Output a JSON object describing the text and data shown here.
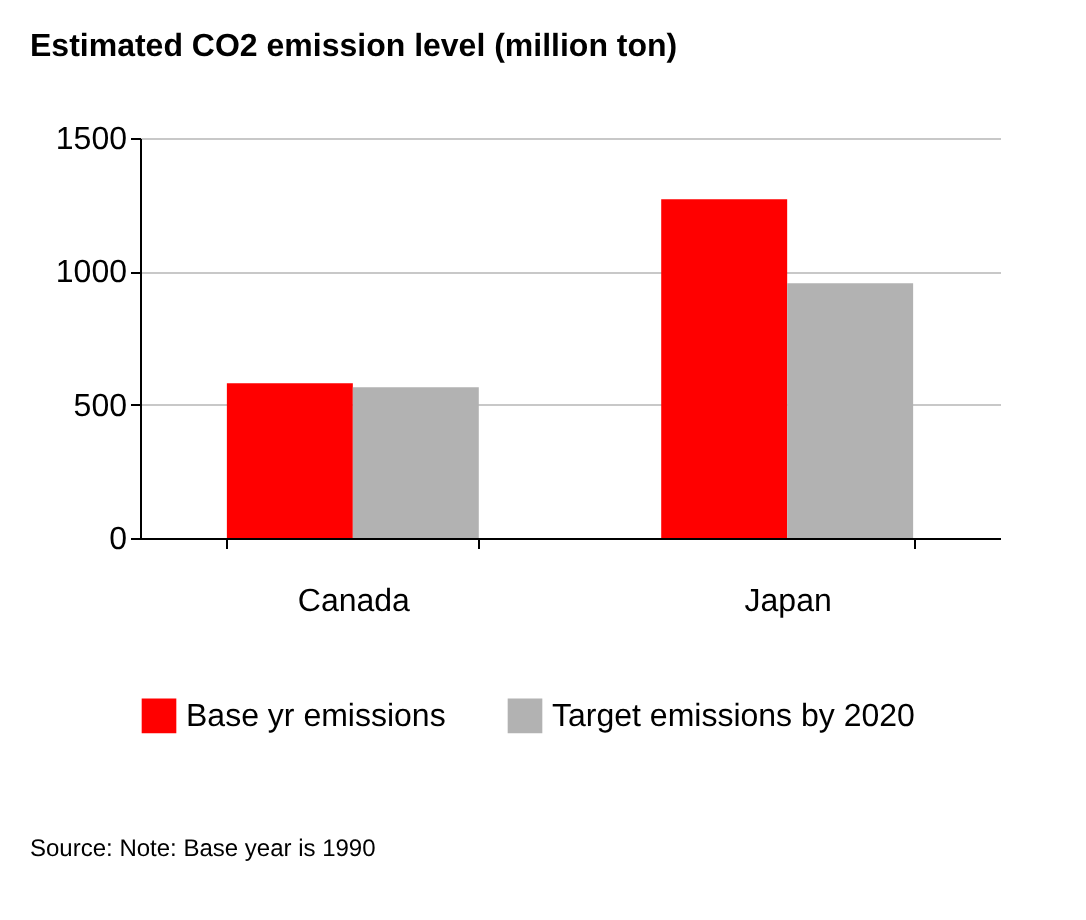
{
  "chart_data": {
    "type": "bar",
    "title": "Estimated CO2 emission level (million ton)",
    "categories": [
      "Canada",
      "Japan"
    ],
    "series": [
      {
        "name": "Base yr emissions",
        "color": "#ff0000",
        "values": [
          580,
          1270
        ]
      },
      {
        "name": "Target emissions by 2020",
        "color": "#b2b2b2",
        "values": [
          565,
          955
        ]
      }
    ],
    "ylim": [
      0,
      1500
    ],
    "yticks": [
      0,
      500,
      {
        "value": 1000,
        "label": "1000"
      },
      {
        "value": 1500,
        "label": "1500"
      }
    ],
    "grid": "y",
    "legend": "bottom",
    "annotations": [
      "Source: Note: Base year is 1990"
    ]
  }
}
